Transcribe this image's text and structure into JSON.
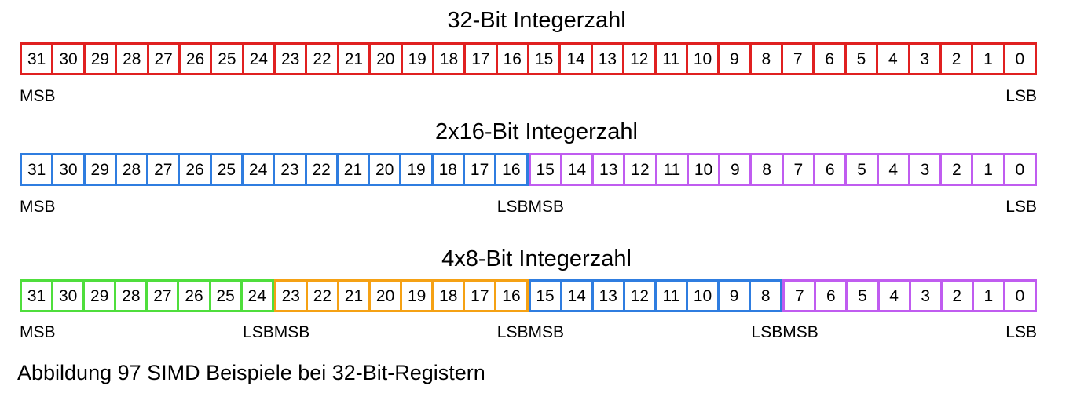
{
  "colors": {
    "red": "#e02020",
    "blue": "#2f7de0",
    "purple": "#c05cf0",
    "green": "#4fde3c",
    "orange": "#f5a114"
  },
  "labels": {
    "msb": "MSB",
    "lsb": "LSB"
  },
  "sections": [
    {
      "title": "32-Bit Integerzahl",
      "groups": [
        {
          "color": "red",
          "bits": [
            "31",
            "30",
            "29",
            "28",
            "27",
            "26",
            "25",
            "24",
            "23",
            "22",
            "21",
            "20",
            "19",
            "18",
            "17",
            "16",
            "15",
            "14",
            "13",
            "12",
            "11",
            "10",
            "9",
            "8",
            "7",
            "6",
            "5",
            "4",
            "3",
            "2",
            "1",
            "0"
          ]
        }
      ]
    },
    {
      "title": "2x16-Bit Integerzahl",
      "groups": [
        {
          "color": "blue",
          "bits": [
            "31",
            "30",
            "29",
            "28",
            "27",
            "26",
            "25",
            "24",
            "23",
            "22",
            "21",
            "20",
            "19",
            "18",
            "17",
            "16"
          ]
        },
        {
          "color": "purple",
          "bits": [
            "15",
            "14",
            "13",
            "12",
            "11",
            "10",
            "9",
            "8",
            "7",
            "6",
            "5",
            "4",
            "3",
            "2",
            "1",
            "0"
          ]
        }
      ]
    },
    {
      "title": "4x8-Bit Integerzahl",
      "groups": [
        {
          "color": "green",
          "bits": [
            "31",
            "30",
            "29",
            "28",
            "27",
            "26",
            "25",
            "24"
          ]
        },
        {
          "color": "orange",
          "bits": [
            "23",
            "22",
            "21",
            "20",
            "19",
            "18",
            "17",
            "16"
          ]
        },
        {
          "color": "blue",
          "bits": [
            "15",
            "14",
            "13",
            "12",
            "11",
            "10",
            "9",
            "8"
          ]
        },
        {
          "color": "purple",
          "bits": [
            "7",
            "6",
            "5",
            "4",
            "3",
            "2",
            "1",
            "0"
          ]
        }
      ]
    }
  ],
  "caption": "Abbildung 97 SIMD Beispiele bei 32-Bit-Registern"
}
